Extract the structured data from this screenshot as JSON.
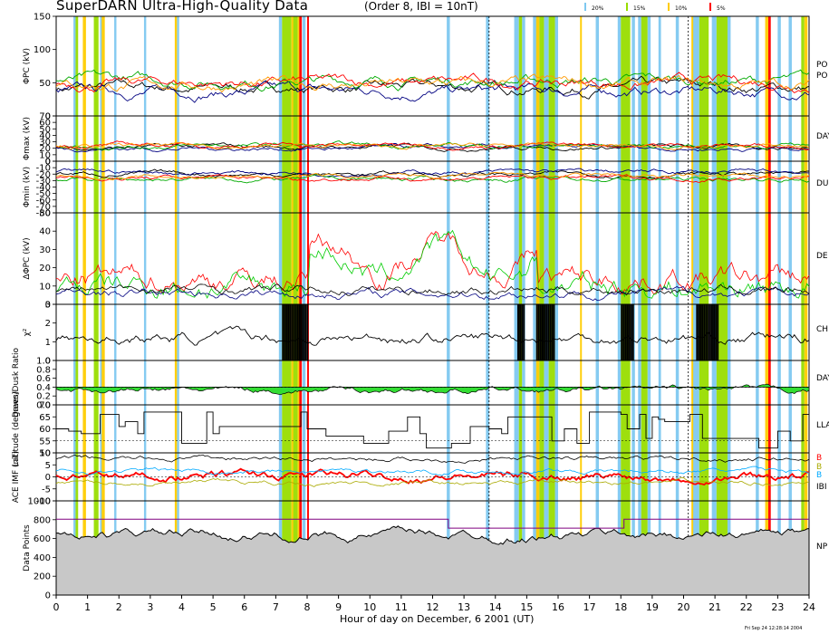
{
  "header": {
    "title": "SuperDARN Ultra-High-Quality Data",
    "params": "(Order 8, IBI = 10nT)",
    "legend": [
      {
        "label": "20%",
        "color": "#7ec8f0"
      },
      {
        "label": "15%",
        "color": "#99dd00"
      },
      {
        "label": "10%",
        "color": "#ffcc00"
      },
      {
        "label": "5%",
        "color": "#ff0000"
      }
    ]
  },
  "footer": {
    "xlabel": "Hour of day on December, 6 2001 (UT)",
    "stamp": "Fri Sep 24 12:28:14 2004"
  },
  "right_labels": [
    "PO",
    "PO",
    "DAY",
    "DU",
    "DE",
    "CH",
    "DAY",
    "LLA",
    "B",
    "B",
    "B",
    "IBI",
    "NP"
  ],
  "chart_data": {
    "type": "line",
    "x_range": [
      0,
      24
    ],
    "x_ticks": [
      "0",
      "1",
      "2",
      "3",
      "4",
      "5",
      "6",
      "7",
      "8",
      "9",
      "10",
      "11",
      "12",
      "13",
      "14",
      "15",
      "16",
      "17",
      "18",
      "19",
      "20",
      "21",
      "22",
      "23",
      "24"
    ],
    "markers_hours": [
      13.8,
      20.15
    ],
    "quality_bands": {
      "20%": [
        [
          0.55,
          0.62
        ],
        [
          1.4,
          1.45
        ],
        [
          1.85,
          1.92
        ],
        [
          2.8,
          2.87
        ],
        [
          3.85,
          3.92
        ],
        [
          7.1,
          7.2
        ],
        [
          7.85,
          7.95
        ],
        [
          12.45,
          12.55
        ],
        [
          13.7,
          13.8
        ],
        [
          14.6,
          14.75
        ],
        [
          14.85,
          14.95
        ],
        [
          15.2,
          15.4
        ],
        [
          15.55,
          15.7
        ],
        [
          15.9,
          16.0
        ],
        [
          17.2,
          17.3
        ],
        [
          17.9,
          18.0
        ],
        [
          18.35,
          18.45
        ],
        [
          18.55,
          18.65
        ],
        [
          18.85,
          18.95
        ],
        [
          19.2,
          19.28
        ],
        [
          19.75,
          19.85
        ],
        [
          20.3,
          20.5
        ],
        [
          20.9,
          21.05
        ],
        [
          21.4,
          21.5
        ],
        [
          22.3,
          22.4
        ],
        [
          23.0,
          23.1
        ],
        [
          23.35,
          23.45
        ]
      ],
      "15%": [
        [
          0.62,
          0.7
        ],
        [
          1.2,
          1.35
        ],
        [
          7.2,
          7.5
        ],
        [
          7.55,
          7.7
        ],
        [
          14.75,
          14.85
        ],
        [
          15.4,
          15.55
        ],
        [
          15.7,
          15.9
        ],
        [
          18.0,
          18.3
        ],
        [
          18.65,
          18.85
        ],
        [
          20.5,
          20.8
        ],
        [
          21.05,
          21.4
        ],
        [
          23.75,
          23.85
        ]
      ],
      "10%": [
        [
          0.85,
          0.95
        ],
        [
          1.45,
          1.55
        ],
        [
          3.78,
          3.85
        ],
        [
          7.5,
          7.55
        ],
        [
          7.7,
          7.75
        ],
        [
          15.3,
          15.4
        ],
        [
          16.7,
          16.75
        ],
        [
          20.25,
          20.3
        ],
        [
          22.6,
          22.7
        ],
        [
          23.85,
          23.95
        ]
      ],
      "5%": [
        [
          7.75,
          7.83
        ],
        [
          8.0,
          8.05
        ],
        [
          22.7,
          22.78
        ]
      ]
    },
    "panels": [
      {
        "id": "phi-pc",
        "ylabel": "ΦPC (kV)",
        "ylim": [
          0,
          150
        ],
        "ticks": [
          0,
          50,
          100,
          150
        ]
      },
      {
        "id": "phi-max",
        "ylabel": "Φmax (kV)",
        "ylim": [
          0,
          70
        ],
        "ticks": [
          0,
          10,
          20,
          30,
          40,
          50,
          60,
          70
        ]
      },
      {
        "id": "phi-min",
        "ylabel": "Φmin (kV)",
        "ylim": [
          -80,
          0
        ],
        "ticks": [
          -80,
          -70,
          -60,
          -50,
          -40,
          -30,
          -20,
          -10,
          0
        ]
      },
      {
        "id": "dphi",
        "ylabel": "ΔΦPC (kV)",
        "ylim": [
          0,
          50
        ],
        "ticks": [
          0,
          10,
          20,
          30,
          40,
          50
        ]
      },
      {
        "id": "chi2",
        "ylabel": "χ²",
        "ylim": [
          0,
          3
        ],
        "ticks": [
          0,
          1,
          2,
          3
        ]
      },
      {
        "id": "dawn-dusk",
        "ylabel": "Dawn/Dusk Ratio",
        "ylim": [
          0.0,
          1.0
        ],
        "ticks": [
          0.0,
          0.2,
          0.4,
          0.6,
          0.8,
          1.0
        ]
      },
      {
        "id": "latitude",
        "ylabel": "Latitude (degrees)",
        "ylim": [
          50,
          70
        ],
        "ticks": [
          50,
          55,
          60,
          65,
          70
        ]
      },
      {
        "id": "imf",
        "ylabel": "ACE IMF (nT)",
        "ylim": [
          -10,
          10
        ],
        "ticks": [
          -10,
          -5,
          0,
          5,
          10
        ]
      },
      {
        "id": "npts",
        "ylabel": "Data Points",
        "ylim": [
          0,
          1000
        ],
        "ticks": [
          0,
          200,
          400,
          600,
          800,
          1000
        ]
      }
    ],
    "series": {
      "phi_pc": [
        {
          "color": "#000000",
          "base": 42
        },
        {
          "color": "#000080",
          "base": 37
        },
        {
          "color": "#00aa00",
          "base": 53
        },
        {
          "color": "#ff0000",
          "base": 50
        },
        {
          "color": "#ff9900",
          "base": 47
        }
      ],
      "phi_max": [
        {
          "color": "#000000",
          "base": 22
        },
        {
          "color": "#000080",
          "base": 20
        },
        {
          "color": "#00aa00",
          "base": 24
        },
        {
          "color": "#ff0000",
          "base": 25
        },
        {
          "color": "#ff9900",
          "base": 23
        }
      ],
      "phi_min": [
        {
          "color": "#000000",
          "base": -20
        },
        {
          "color": "#000080",
          "base": -17
        },
        {
          "color": "#00aa00",
          "base": -28
        },
        {
          "color": "#ff0000",
          "base": -26
        },
        {
          "color": "#ff9900",
          "base": -24
        }
      ],
      "dphi": [
        {
          "color": "#ff0000",
          "base": 14
        },
        {
          "color": "#00cc00",
          "base": 10
        },
        {
          "color": "#000080",
          "base": 6
        },
        {
          "color": "#000000",
          "base": 8
        }
      ],
      "imf": [
        {
          "color": "#ff0000",
          "base": 0.5,
          "label": "Bz"
        },
        {
          "color": "#00aaff",
          "base": 2.5,
          "label": "By"
        },
        {
          "color": "#aaaa00",
          "base": -2.5,
          "label": "Bx"
        },
        {
          "color": "#000000",
          "base": 7.5,
          "label": "IBI"
        }
      ]
    }
  }
}
